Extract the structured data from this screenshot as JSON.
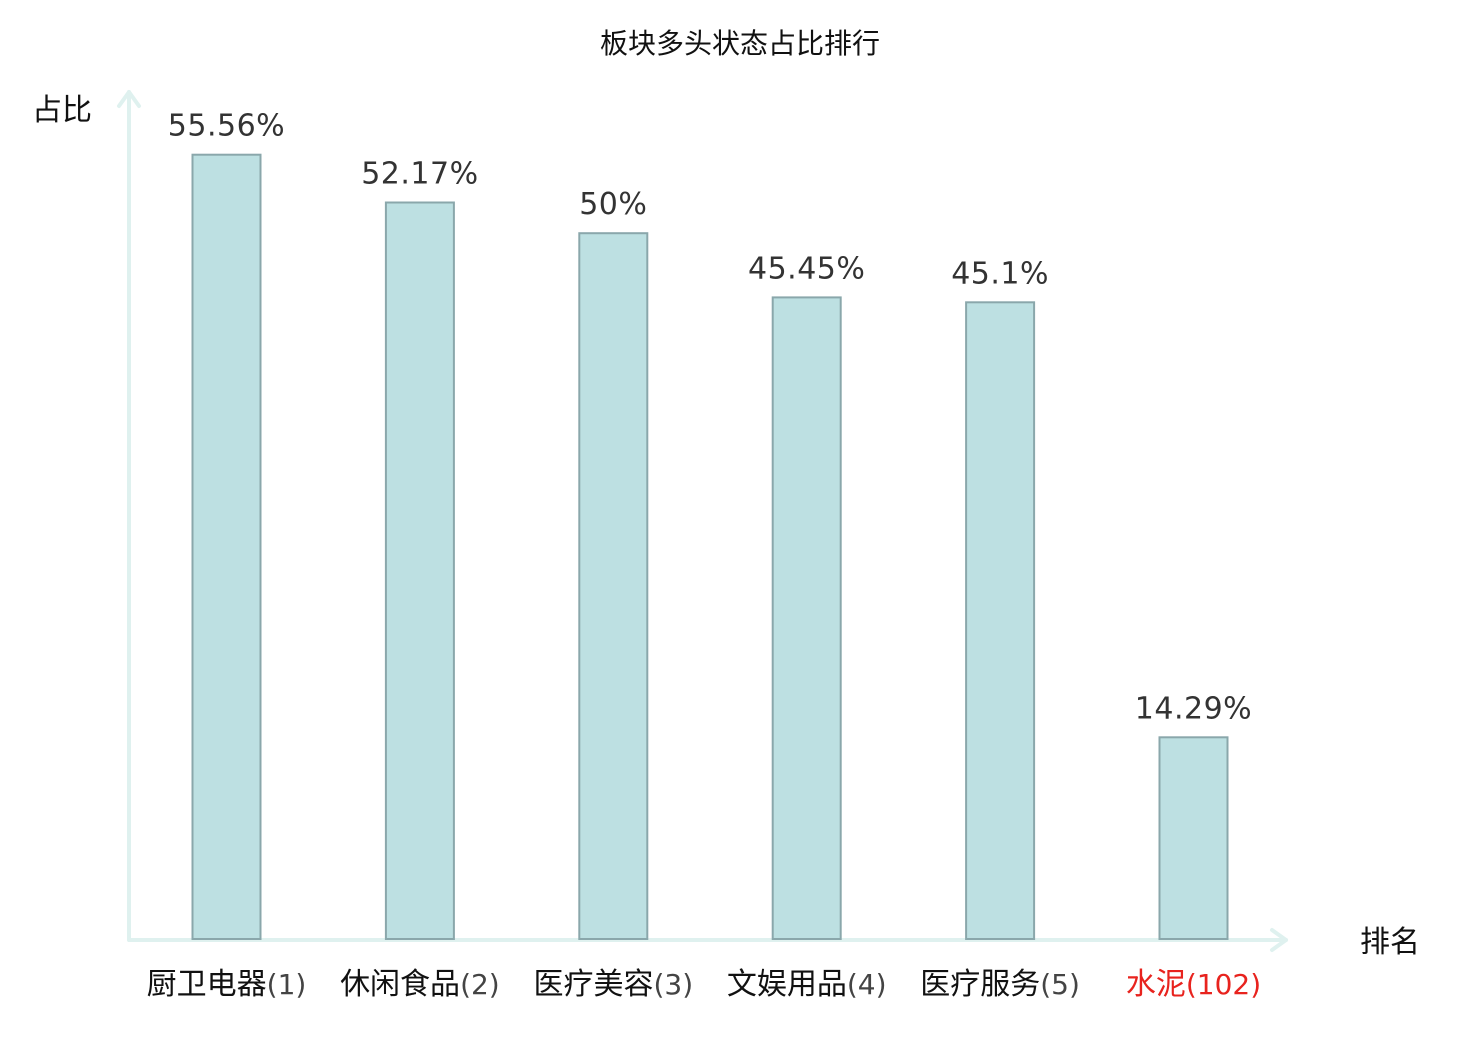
{
  "chart_data": {
    "type": "bar",
    "title": "板块多头状态占比排行",
    "ylabel": "占比",
    "xlabel": "排名",
    "categories": [
      {
        "name": "厨卫电器",
        "rank": "(1)",
        "highlight": false
      },
      {
        "name": "休闲食品",
        "rank": "(2)",
        "highlight": false
      },
      {
        "name": "医疗美容",
        "rank": "(3)",
        "highlight": false
      },
      {
        "name": "文娱用品",
        "rank": "(4)",
        "highlight": false
      },
      {
        "name": "医疗服务",
        "rank": "(5)",
        "highlight": false
      },
      {
        "name": "水泥",
        "rank": "(102)",
        "highlight": true
      }
    ],
    "values": [
      55.56,
      52.17,
      50,
      45.45,
      45.1,
      14.29
    ],
    "value_labels": [
      "55.56%",
      "52.17%",
      "50%",
      "45.45%",
      "45.1%",
      "14.29%"
    ],
    "ylim": [
      0,
      60
    ],
    "grid": false,
    "legend": "none",
    "colors": {
      "bar_fill": "#bde0e2",
      "bar_stroke": "#8aa7ab",
      "axis": "#dff1ef",
      "text": "#111111",
      "rank_text": "#444444",
      "value_text": "#333333",
      "highlight": "#e8231e"
    }
  }
}
